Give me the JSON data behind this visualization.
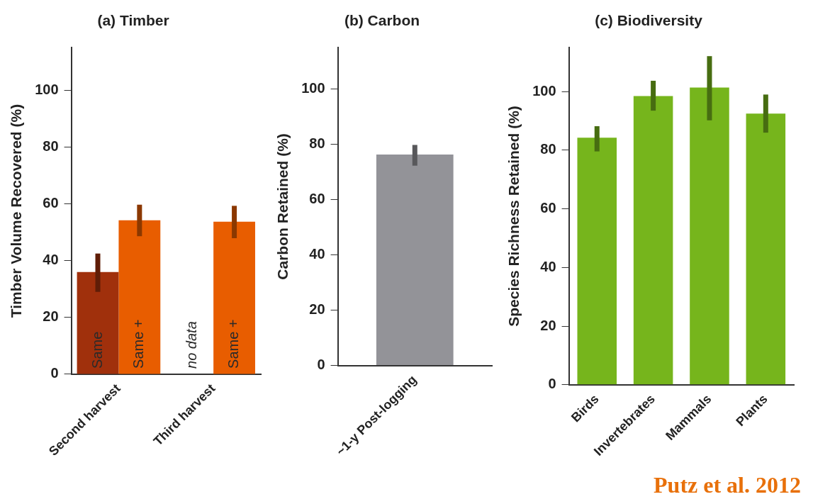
{
  "chart_data": [
    {
      "type": "bar",
      "title": "(a) Timber",
      "ylabel": "Timber Volume Recovered (%)",
      "categories": [
        "Second harvest",
        "Third harvest"
      ],
      "series": [
        {
          "name": "Same",
          "color": "#a0300c",
          "values": [
            36,
            null
          ],
          "errors": [
            [
              29,
              42.5
            ],
            null
          ]
        },
        {
          "name": "Same +",
          "color": "#e85d00",
          "values": [
            54.2,
            53.7
          ],
          "errors": [
            [
              48.6,
              59.7
            ],
            [
              47.9,
              59.3
            ]
          ]
        }
      ],
      "annotations": [
        {
          "text": "no data",
          "x": "Third harvest"
        }
      ],
      "ylim": [
        0,
        115
      ],
      "yticks": [
        0,
        20,
        40,
        60,
        80,
        100
      ],
      "grid": false,
      "legend": false
    },
    {
      "type": "bar",
      "title": "(b) Carbon",
      "ylabel": "Carbon Retained (%)",
      "categories": [
        "~1-y Post-logging"
      ],
      "values": [
        76.3
      ],
      "errors": [
        [
          72.3,
          79.8
        ]
      ],
      "color": "#939398",
      "ylim": [
        0,
        115
      ],
      "yticks": [
        0,
        20,
        40,
        60,
        80,
        100
      ],
      "grid": false,
      "legend": false
    },
    {
      "type": "bar",
      "title": "(c) Biodiversity",
      "ylabel": "Species Richness Retained (%)",
      "categories": [
        "Birds",
        "Invertebrates",
        "Mammals",
        "Plants"
      ],
      "values": [
        84.3,
        98.5,
        101.4,
        92.5
      ],
      "errors": [
        [
          79.6,
          88.2
        ],
        [
          93.5,
          103.7
        ],
        [
          90.2,
          112.1
        ],
        [
          86,
          99
        ]
      ],
      "color": "#76b51c",
      "ylim": [
        0,
        115
      ],
      "yticks": [
        0,
        20,
        40,
        60,
        80,
        100
      ],
      "grid": false,
      "legend": false,
      "annotations": [
        "Putz et al. 2012"
      ]
    }
  ]
}
